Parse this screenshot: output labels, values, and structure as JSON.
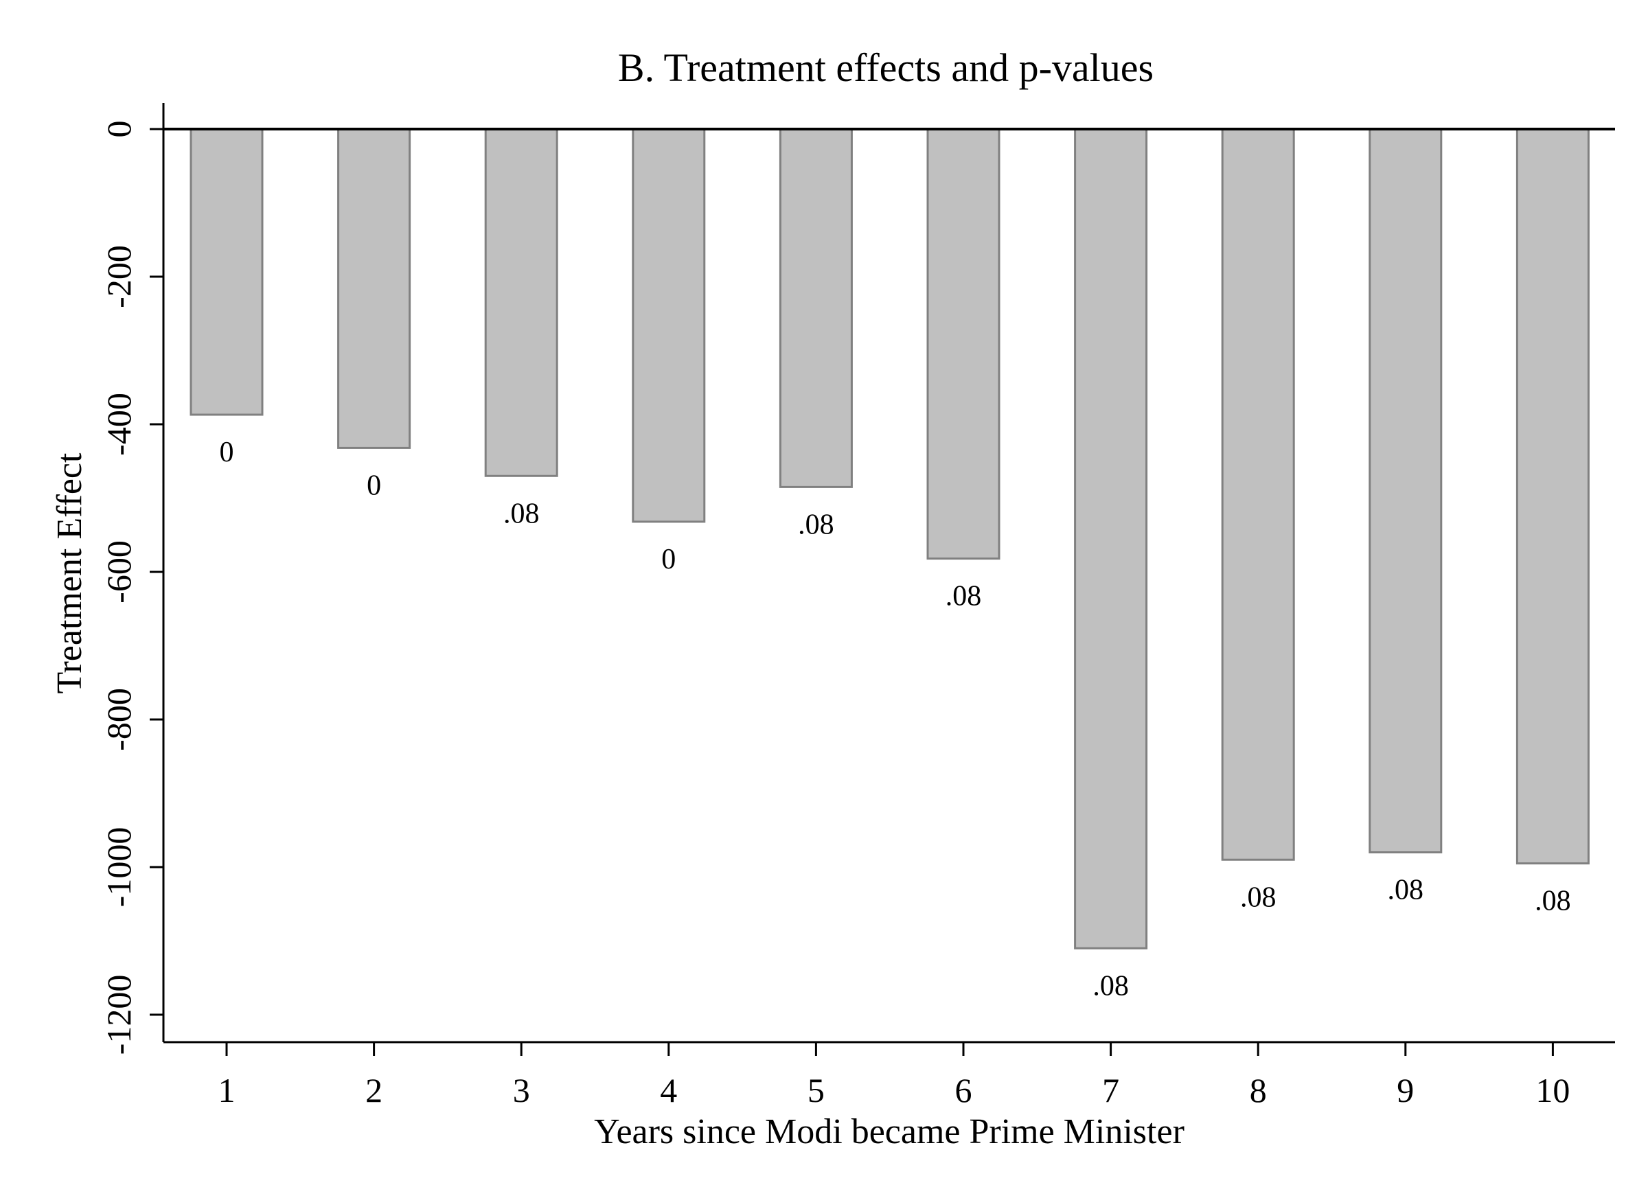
{
  "chart_data": {
    "type": "bar",
    "title": "B. Treatment effects and p-values",
    "xlabel": "Years since Modi became Prime Minister",
    "ylabel": "Treatment Effect",
    "categories": [
      "1",
      "2",
      "3",
      "4",
      "5",
      "6",
      "7",
      "8",
      "9",
      "10"
    ],
    "values": [
      -387,
      -432,
      -470,
      -532,
      -485,
      -582,
      -1110,
      -990,
      -980,
      -995
    ],
    "bar_labels": [
      "0",
      "0",
      ".08",
      "0",
      ".08",
      ".08",
      ".08",
      ".08",
      ".08",
      ".08"
    ],
    "yticks": [
      0,
      -200,
      -400,
      -600,
      -800,
      -1000,
      -1200
    ],
    "ytick_labels": [
      "0",
      "-200",
      "-400",
      "-600",
      "-800",
      "-1000",
      "-1200"
    ],
    "ylim": [
      -1230,
      35
    ],
    "grid": false,
    "colors": {
      "bar_fill": "#c0c0c0",
      "bar_stroke": "#808080",
      "axis": "#000000"
    }
  }
}
